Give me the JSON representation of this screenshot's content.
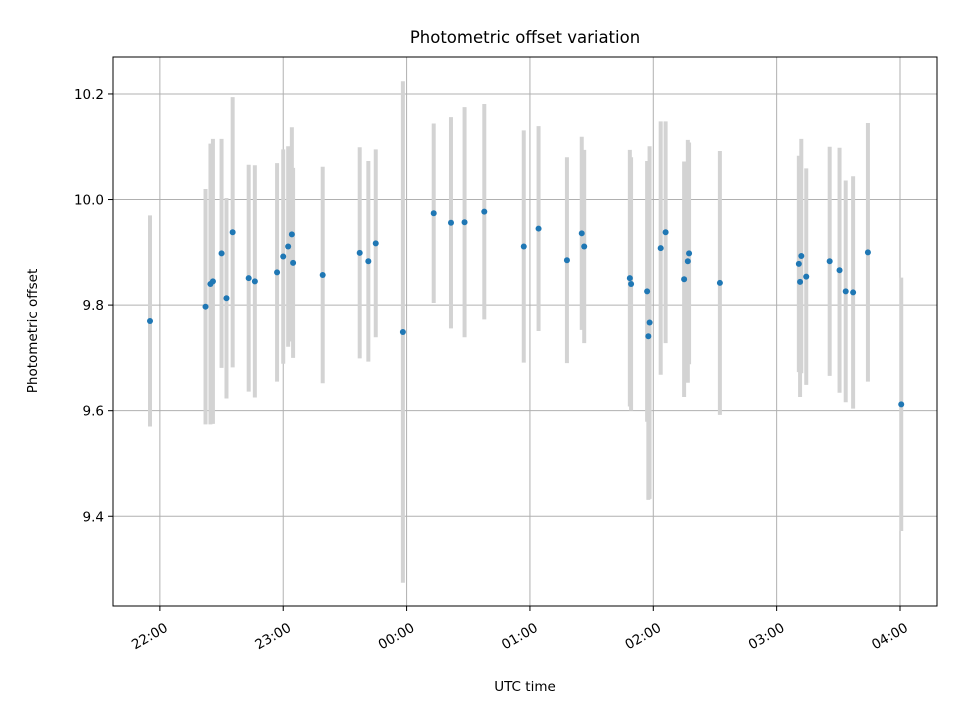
{
  "chart_data": {
    "type": "scatter",
    "title": "Photometric offset variation",
    "xlabel": "UTC time",
    "ylabel": "Photometric offset",
    "xlim": [
      -2.38,
      4.3
    ],
    "ylim": [
      9.23,
      10.27
    ],
    "x_unit": "hours relative to 00:00 UTC",
    "xticks": [
      {
        "value": -2,
        "label": "22:00"
      },
      {
        "value": -1,
        "label": "23:00"
      },
      {
        "value": 0,
        "label": "00:00"
      },
      {
        "value": 1,
        "label": "01:00"
      },
      {
        "value": 2,
        "label": "02:00"
      },
      {
        "value": 3,
        "label": "03:00"
      },
      {
        "value": 4,
        "label": "04:00"
      }
    ],
    "yticks": [
      {
        "value": 9.4,
        "label": "9.4"
      },
      {
        "value": 9.6,
        "label": "9.6"
      },
      {
        "value": 9.8,
        "label": "9.8"
      },
      {
        "value": 10.0,
        "label": "10.0"
      },
      {
        "value": 10.2,
        "label": "10.2"
      }
    ],
    "grid": true,
    "marker_color": "#1f77b4",
    "errorbar_color": "#d3d3d3",
    "points": [
      {
        "x": -2.08,
        "y": 9.77,
        "err": 0.2
      },
      {
        "x": -1.63,
        "y": 9.797,
        "err": 0.223
      },
      {
        "x": -1.59,
        "y": 9.84,
        "err": 0.266
      },
      {
        "x": -1.57,
        "y": 9.845,
        "err": 0.27
      },
      {
        "x": -1.5,
        "y": 9.898,
        "err": 0.217
      },
      {
        "x": -1.46,
        "y": 9.813,
        "err": 0.19
      },
      {
        "x": -1.41,
        "y": 9.938,
        "err": 0.256
      },
      {
        "x": -1.28,
        "y": 9.851,
        "err": 0.215
      },
      {
        "x": -1.23,
        "y": 9.845,
        "err": 0.22
      },
      {
        "x": -1.05,
        "y": 9.862,
        "err": 0.207
      },
      {
        "x": -1.0,
        "y": 9.892,
        "err": 0.203
      },
      {
        "x": -0.96,
        "y": 9.911,
        "err": 0.19
      },
      {
        "x": -0.93,
        "y": 9.934,
        "err": 0.203
      },
      {
        "x": -0.92,
        "y": 9.88,
        "err": 0.18
      },
      {
        "x": -0.68,
        "y": 9.857,
        "err": 0.205
      },
      {
        "x": -0.38,
        "y": 9.899,
        "err": 0.2
      },
      {
        "x": -0.31,
        "y": 9.883,
        "err": 0.19
      },
      {
        "x": -0.25,
        "y": 9.917,
        "err": 0.178
      },
      {
        "x": -0.03,
        "y": 9.749,
        "err": 0.475
      },
      {
        "x": 0.22,
        "y": 9.974,
        "err": 0.17
      },
      {
        "x": 0.36,
        "y": 9.956,
        "err": 0.2
      },
      {
        "x": 0.47,
        "y": 9.957,
        "err": 0.218
      },
      {
        "x": 0.63,
        "y": 9.977,
        "err": 0.204
      },
      {
        "x": 0.95,
        "y": 9.911,
        "err": 0.22
      },
      {
        "x": 1.07,
        "y": 9.945,
        "err": 0.194
      },
      {
        "x": 1.3,
        "y": 9.885,
        "err": 0.195
      },
      {
        "x": 1.42,
        "y": 9.936,
        "err": 0.183
      },
      {
        "x": 1.44,
        "y": 9.911,
        "err": 0.183
      },
      {
        "x": 1.81,
        "y": 9.851,
        "err": 0.243
      },
      {
        "x": 1.82,
        "y": 9.84,
        "err": 0.24
      },
      {
        "x": 1.95,
        "y": 9.826,
        "err": 0.247
      },
      {
        "x": 1.96,
        "y": 9.741,
        "err": 0.31
      },
      {
        "x": 1.97,
        "y": 9.767,
        "err": 0.334
      },
      {
        "x": 2.06,
        "y": 9.908,
        "err": 0.24
      },
      {
        "x": 2.1,
        "y": 9.938,
        "err": 0.21
      },
      {
        "x": 2.25,
        "y": 9.849,
        "err": 0.223
      },
      {
        "x": 2.28,
        "y": 9.883,
        "err": 0.23
      },
      {
        "x": 2.29,
        "y": 9.898,
        "err": 0.21
      },
      {
        "x": 2.54,
        "y": 9.842,
        "err": 0.25
      },
      {
        "x": 3.18,
        "y": 9.878,
        "err": 0.205
      },
      {
        "x": 3.19,
        "y": 9.844,
        "err": 0.218
      },
      {
        "x": 3.2,
        "y": 9.893,
        "err": 0.222
      },
      {
        "x": 3.24,
        "y": 9.854,
        "err": 0.205
      },
      {
        "x": 3.43,
        "y": 9.883,
        "err": 0.217
      },
      {
        "x": 3.51,
        "y": 9.866,
        "err": 0.232
      },
      {
        "x": 3.56,
        "y": 9.826,
        "err": 0.21
      },
      {
        "x": 3.62,
        "y": 9.824,
        "err": 0.22
      },
      {
        "x": 3.74,
        "y": 9.9,
        "err": 0.245
      },
      {
        "x": 4.01,
        "y": 9.612,
        "err": 0.24
      }
    ]
  }
}
